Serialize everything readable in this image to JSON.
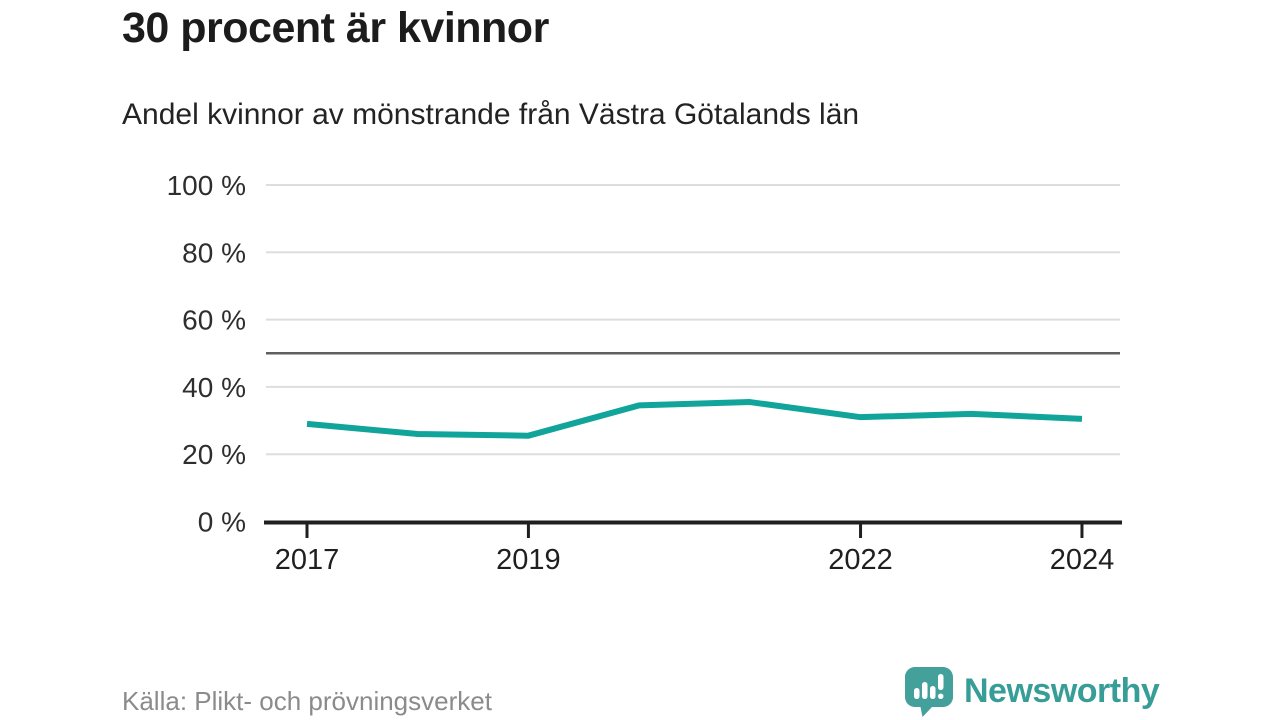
{
  "title": "30 procent är kvinnor",
  "subtitle": "Andel kvinnor av mönstrande från Västra Götalands län",
  "source": "Källa: Plikt- och prövningsverket",
  "branding": {
    "name": "Newsworthy",
    "color": "#379e97"
  },
  "colors": {
    "background": "#ffffff",
    "grid": "#dddddd",
    "reference_line": "#5f5f5f",
    "axis": "#1f1f1f",
    "line": "#10a49a",
    "title_text": "#1c1c1c",
    "source_text": "#8b8b8b"
  },
  "chart_data": {
    "type": "line",
    "title": "30 procent är kvinnor",
    "subtitle": "Andel kvinnor av mönstrande från Västra Götalands län",
    "x": [
      2017,
      2018,
      2019,
      2020,
      2021,
      2022,
      2023,
      2024
    ],
    "series": [
      {
        "name": "Andel kvinnor av mönstrande",
        "color": "#10a49a",
        "values": [
          29,
          26,
          25.5,
          34.5,
          35.5,
          31,
          32,
          30.5
        ]
      }
    ],
    "unit": "%",
    "ylim": [
      0,
      100
    ],
    "yticks": [
      {
        "value": 0,
        "label": "0 %"
      },
      {
        "value": 20,
        "label": "20 %"
      },
      {
        "value": 40,
        "label": "40 %"
      },
      {
        "value": 60,
        "label": "60 %"
      },
      {
        "value": 80,
        "label": "80 %"
      },
      {
        "value": 100,
        "label": "100 %"
      }
    ],
    "xticks": [
      {
        "value": 2017,
        "label": "2017"
      },
      {
        "value": 2019,
        "label": "2019"
      },
      {
        "value": 2022,
        "label": "2022"
      },
      {
        "value": 2024,
        "label": "2024"
      }
    ],
    "reference_line": {
      "value": 50
    },
    "grid": true,
    "legend": "none",
    "source": "Källa: Plikt- och prövningsverket"
  }
}
